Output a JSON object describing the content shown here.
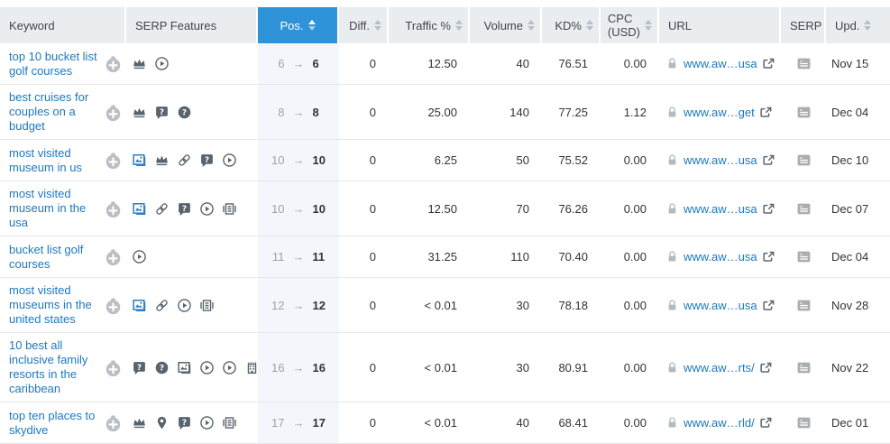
{
  "colors": {
    "accent_blue": "#2e93d8",
    "link_blue": "#1c78c0",
    "pos_column_bg": "#f3f7fb",
    "header_bg": "#e9edf0",
    "icon_dark": "#57636d",
    "icon_gray": "#b3bac0"
  },
  "table": {
    "pos_arrow_glyph": "→",
    "columns": {
      "keyword": {
        "label": "Keyword",
        "sortable": false
      },
      "serp_features": {
        "label": "SERP Features",
        "sortable": false
      },
      "pos": {
        "label": "Pos.",
        "sortable": true,
        "sorted": "asc"
      },
      "diff": {
        "label": "Diff.",
        "sortable": true
      },
      "traffic": {
        "label": "Traffic %",
        "sortable": true
      },
      "volume": {
        "label": "Volume",
        "sortable": true
      },
      "kd": {
        "label": "KD%",
        "sortable": true
      },
      "cpc": {
        "label": "CPC\n(USD)",
        "sortable": true
      },
      "url": {
        "label": "URL",
        "sortable": false
      },
      "serp": {
        "label": "SERP",
        "sortable": false
      },
      "upd": {
        "label": "Upd.",
        "sortable": true
      }
    },
    "rows": [
      {
        "keyword": "top 10 bucket list golf courses",
        "serp_features": [
          "crown",
          "play-circle"
        ],
        "pos_old": "6",
        "pos_new": "6",
        "diff": "0",
        "traffic": "12.50",
        "volume": "40",
        "kd": "76.51",
        "cpc": "0.00",
        "url": "www.aw…usa",
        "upd": "Nov 15"
      },
      {
        "keyword": "best cruises for couples on a budget",
        "serp_features": [
          "crown",
          "question-bubble",
          "question-circle"
        ],
        "pos_old": "8",
        "pos_new": "8",
        "diff": "0",
        "traffic": "25.00",
        "volume": "140",
        "kd": "77.25",
        "cpc": "1.12",
        "url": "www.aw…get",
        "upd": "Dec 04"
      },
      {
        "keyword": "most visited museum in us",
        "serp_features": [
          "image-blue",
          "crown",
          "link",
          "question-bubble",
          "play-circle"
        ],
        "pos_old": "10",
        "pos_new": "10",
        "diff": "0",
        "traffic": "6.25",
        "volume": "50",
        "kd": "75.52",
        "cpc": "0.00",
        "url": "www.aw…usa",
        "upd": "Dec 10"
      },
      {
        "keyword": "most visited museum in the usa",
        "serp_features": [
          "image-blue",
          "link",
          "question-bubble",
          "play-circle",
          "carousel"
        ],
        "pos_old": "10",
        "pos_new": "10",
        "diff": "0",
        "traffic": "12.50",
        "volume": "70",
        "kd": "76.26",
        "cpc": "0.00",
        "url": "www.aw…usa",
        "upd": "Dec 07"
      },
      {
        "keyword": "bucket list golf courses",
        "serp_features": [
          "play-circle"
        ],
        "pos_old": "11",
        "pos_new": "11",
        "diff": "0",
        "traffic": "31.25",
        "volume": "110",
        "kd": "70.40",
        "cpc": "0.00",
        "url": "www.aw…usa",
        "upd": "Dec 04"
      },
      {
        "keyword": "most visited museums in the united states",
        "serp_features": [
          "image-blue",
          "link",
          "play-circle",
          "carousel"
        ],
        "pos_old": "12",
        "pos_new": "12",
        "diff": "0",
        "traffic": "< 0.01",
        "volume": "30",
        "kd": "78.18",
        "cpc": "0.00",
        "url": "www.aw…usa",
        "upd": "Nov 28"
      },
      {
        "keyword": "10 best all inclusive family resorts in the caribbean",
        "serp_features": [
          "question-bubble",
          "question-circle",
          "image-gray",
          "play-circle",
          "play-circle",
          "building"
        ],
        "pos_old": "16",
        "pos_new": "16",
        "diff": "0",
        "traffic": "< 0.01",
        "volume": "30",
        "kd": "80.91",
        "cpc": "0.00",
        "url": "www.aw…rts/",
        "upd": "Nov 22"
      },
      {
        "keyword": "top ten places to skydive",
        "serp_features": [
          "crown",
          "location-pin",
          "question-bubble",
          "play-circle",
          "carousel"
        ],
        "pos_old": "17",
        "pos_new": "17",
        "diff": "0",
        "traffic": "< 0.01",
        "volume": "40",
        "kd": "68.41",
        "cpc": "0.00",
        "url": "www.aw…rld/",
        "upd": "Dec 01"
      }
    ]
  }
}
